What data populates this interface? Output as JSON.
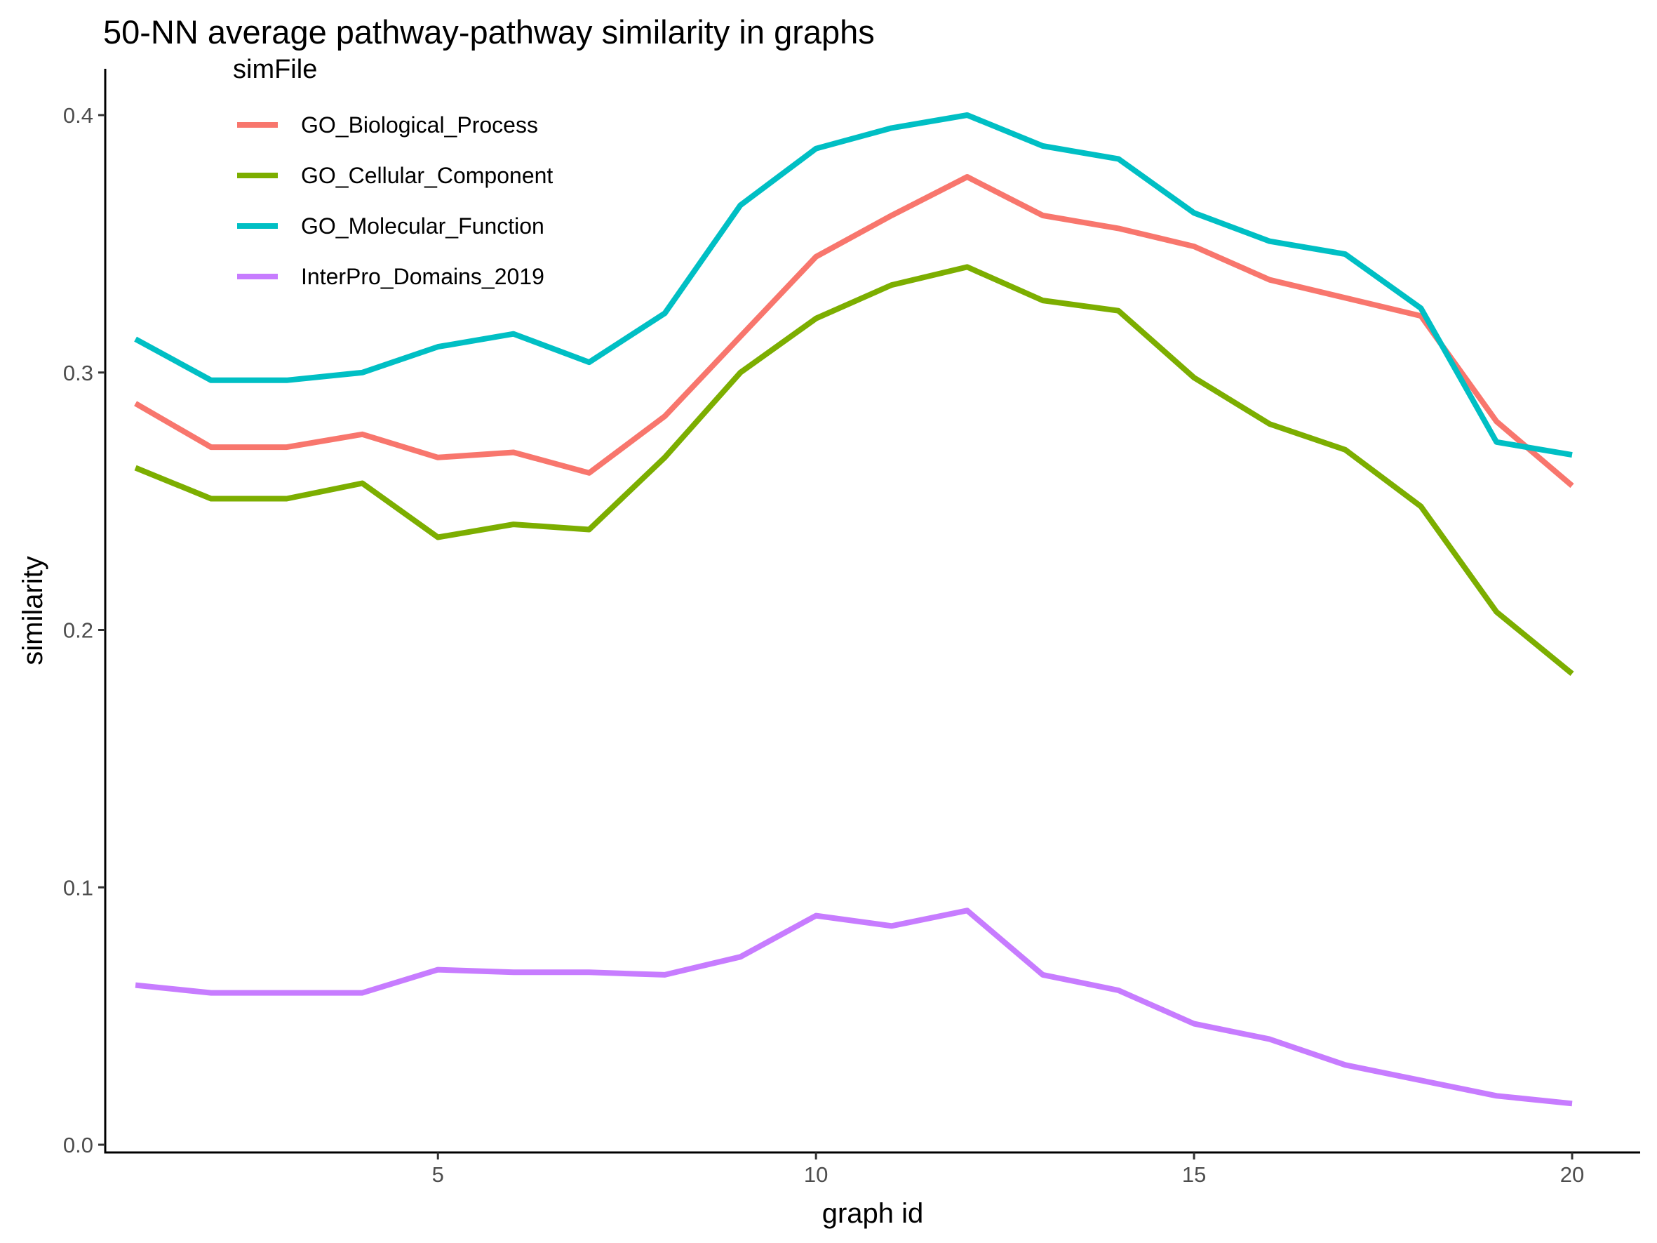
{
  "chart_data": {
    "type": "line",
    "title": "50-NN average pathway-pathway similarity in graphs",
    "xlabel": "graph id",
    "ylabel": "similarity",
    "xlim": [
      0.6,
      20.9
    ],
    "ylim": [
      -0.003,
      0.418
    ],
    "xticks": [
      5,
      10,
      15,
      20
    ],
    "yticks": [
      0.0,
      0.1,
      0.2,
      0.3,
      0.4
    ],
    "ytick_labels": [
      "0.0",
      "0.1",
      "0.2",
      "0.3",
      "0.4"
    ],
    "grid": false,
    "legend": {
      "title": "simFile",
      "placement": "top-left"
    },
    "x": [
      1,
      2,
      3,
      4,
      5,
      6,
      7,
      8,
      9,
      10,
      11,
      12,
      13,
      14,
      15,
      16,
      17,
      18,
      19,
      20
    ],
    "series": [
      {
        "name": "GO_Biological_Process",
        "color": "#F8766D",
        "values": [
          0.288,
          0.271,
          0.271,
          0.276,
          0.267,
          0.269,
          0.261,
          0.283,
          0.314,
          0.345,
          0.361,
          0.376,
          0.361,
          0.356,
          0.349,
          0.336,
          0.329,
          0.322,
          0.281,
          0.256
        ]
      },
      {
        "name": "GO_Cellular_Component",
        "color": "#7CAE00",
        "values": [
          0.263,
          0.251,
          0.251,
          0.257,
          0.236,
          0.241,
          0.239,
          0.267,
          0.3,
          0.321,
          0.334,
          0.341,
          0.328,
          0.324,
          0.298,
          0.28,
          0.27,
          0.248,
          0.207,
          0.183
        ]
      },
      {
        "name": "GO_Molecular_Function",
        "color": "#00BFC4",
        "values": [
          0.313,
          0.297,
          0.297,
          0.3,
          0.31,
          0.315,
          0.304,
          0.323,
          0.365,
          0.387,
          0.395,
          0.4,
          0.388,
          0.383,
          0.362,
          0.351,
          0.346,
          0.325,
          0.273,
          0.268
        ]
      },
      {
        "name": "InterPro_Domains_2019",
        "color": "#C77CFF",
        "values": [
          0.062,
          0.059,
          0.059,
          0.059,
          0.068,
          0.067,
          0.067,
          0.066,
          0.073,
          0.089,
          0.085,
          0.091,
          0.066,
          0.06,
          0.047,
          0.041,
          0.031,
          0.025,
          0.019,
          0.016
        ]
      }
    ]
  }
}
